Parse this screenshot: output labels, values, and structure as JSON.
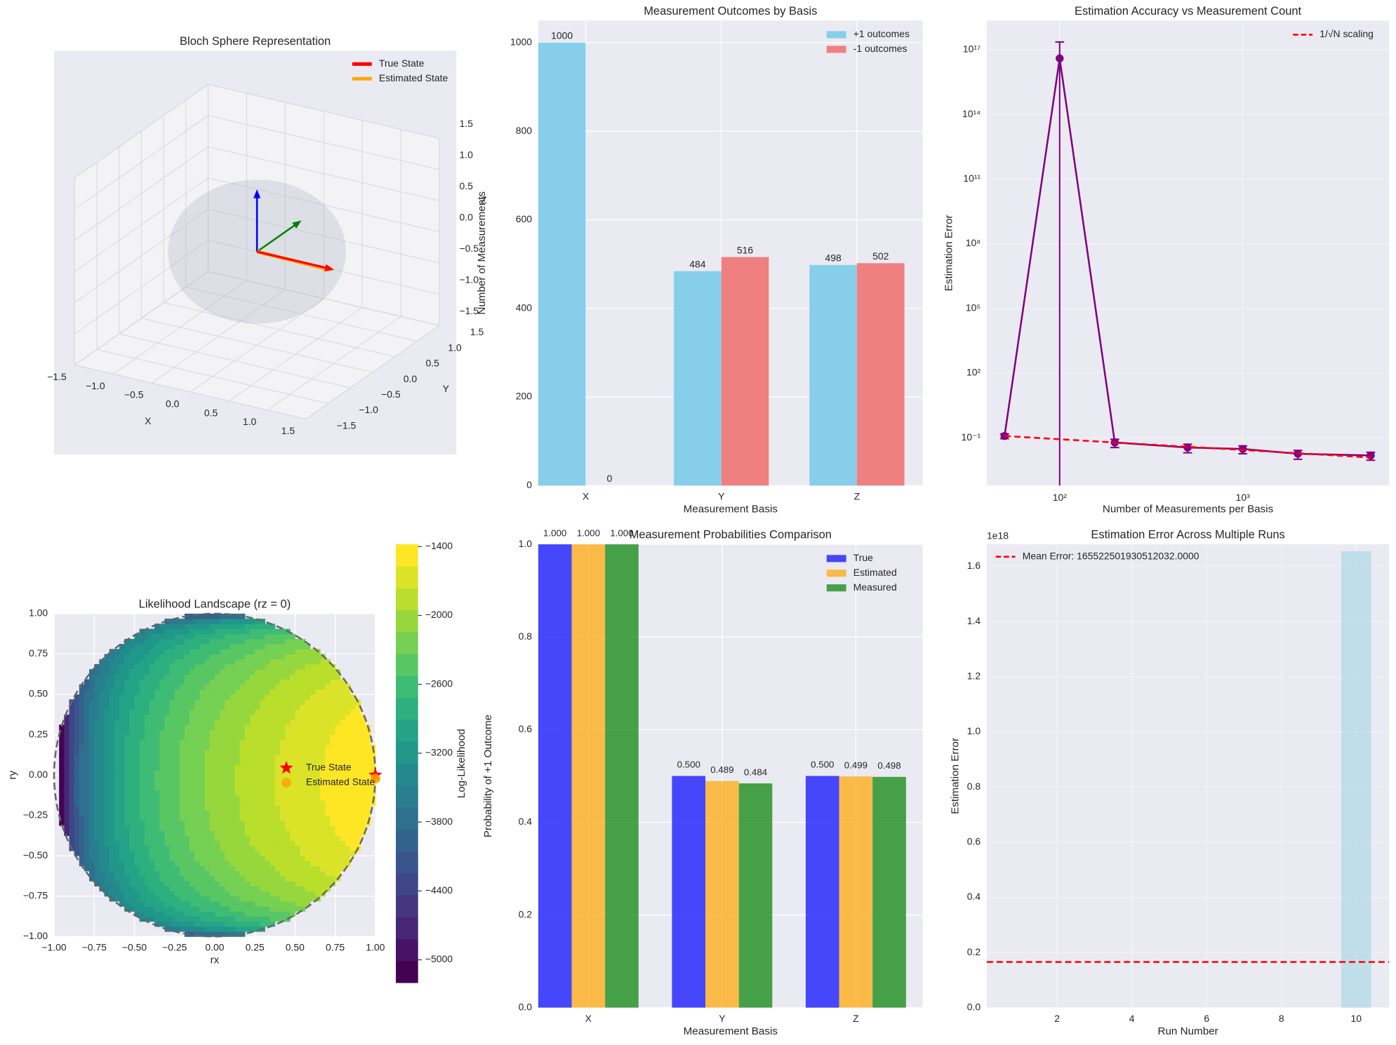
{
  "chart_data": [
    {
      "type": "quiver3d",
      "title": "Bloch Sphere Representation",
      "xlabel": "X",
      "ylabel": "Y",
      "zlabel": "Z",
      "xlim": [
        -1.5,
        1.5
      ],
      "ylim": [
        -1.5,
        1.5
      ],
      "zlim": [
        -1.5,
        1.5
      ],
      "xticks": [
        {
          "value": -1.5,
          "label": "−1.5"
        },
        {
          "value": -1,
          "label": "−1.0"
        },
        {
          "value": -0.5,
          "label": "−0.5"
        },
        {
          "value": 0,
          "label": "0.0"
        },
        {
          "value": 0.5,
          "label": "0.5"
        },
        {
          "value": 1,
          "label": "1.0"
        },
        {
          "value": 1.5,
          "label": "1.5"
        }
      ],
      "yticks": [
        {
          "value": -1.5,
          "label": "−1.5"
        },
        {
          "value": -1,
          "label": "−1.0"
        },
        {
          "value": -0.5,
          "label": "−0.5"
        },
        {
          "value": 0,
          "label": "0.0"
        },
        {
          "value": 0.5,
          "label": "0.5"
        },
        {
          "value": 1,
          "label": "1.0"
        },
        {
          "value": 1.5,
          "label": "1.5"
        }
      ],
      "zticks": [
        {
          "value": -1.5,
          "label": "−1.5"
        },
        {
          "value": -1,
          "label": "−1.0"
        },
        {
          "value": -0.5,
          "label": "−0.5"
        },
        {
          "value": 0,
          "label": "0.0"
        },
        {
          "value": 0.5,
          "label": "0.5"
        },
        {
          "value": 1,
          "label": "1.0"
        },
        {
          "value": 1.5,
          "label": "1.5"
        }
      ],
      "sphere_radius": 1,
      "axis_vectors": [
        {
          "color": "blue",
          "vector": [
            0,
            0,
            1
          ]
        },
        {
          "color": "green",
          "vector": [
            0,
            1,
            0
          ]
        }
      ],
      "series": [
        {
          "name": "True State",
          "color": "red",
          "vector": [
            1,
            0,
            0
          ]
        },
        {
          "name": "Estimated State",
          "color": "orange",
          "vector": [
            1,
            -0.022,
            -0.002
          ]
        }
      ],
      "legend": "upper right"
    },
    {
      "type": "bar",
      "title": "Measurement Outcomes by Basis",
      "xlabel": "Measurement Basis",
      "ylabel": "Number of Measurements",
      "categories": [
        "X",
        "Y",
        "Z"
      ],
      "series": [
        {
          "name": "+1 outcomes",
          "color": "#87ceeb",
          "values": [
            1000,
            484,
            498
          ]
        },
        {
          "name": "-1 outcomes",
          "color": "#f08080",
          "values": [
            0,
            516,
            502
          ]
        }
      ],
      "ylim": [
        0,
        1050
      ],
      "yticks": [
        0,
        200,
        400,
        600,
        800,
        1000
      ],
      "grid": true,
      "legend": "upper right"
    },
    {
      "type": "errorbar",
      "title": "Estimation Accuracy vs Measurement Count",
      "xlabel": "Number of Measurements per Basis",
      "ylabel": "Estimation Error",
      "xscale": "log",
      "yscale": "log",
      "x": [
        50,
        100,
        200,
        500,
        1000,
        2000,
        5000
      ],
      "series": [
        {
          "color": "purple",
          "marker": "circle",
          "values": [
            0.12,
            40000000000000000,
            0.06,
            0.035,
            0.03,
            0.018,
            0.015
          ],
          "errors": [
            0.03,
            190000000000000000,
            0.025,
            0.015,
            0.012,
            0.008,
            0.006
          ]
        },
        {
          "name": "1/√N scaling",
          "color": "red",
          "linestyle": "dashed",
          "values": [
            0.12,
            0.085,
            0.06,
            0.038,
            0.027,
            0.019,
            0.012
          ]
        }
      ],
      "xlim": [
        40,
        6300
      ],
      "ylim": [
        0.0006,
        2.3e+18
      ],
      "xticks": [
        {
          "value": 100,
          "label": "10²"
        },
        {
          "value": 1000,
          "label": "10³"
        }
      ],
      "yticks": [
        {
          "value": 0.1,
          "label": "10⁻¹"
        },
        {
          "value": 100,
          "label": "10²"
        },
        {
          "value": 100000,
          "label": "10⁵"
        },
        {
          "value": 100000000,
          "label": "10⁸"
        },
        {
          "value": 100000000000,
          "label": "10¹¹"
        },
        {
          "value": 100000000000000,
          "label": "10¹⁴"
        },
        {
          "value": 100000000000000000,
          "label": "10¹⁷"
        }
      ],
      "grid": true,
      "legend": "upper right"
    },
    {
      "type": "contour",
      "title": "Likelihood Landscape (rz = 0)",
      "xlabel": "rx",
      "ylabel": "ry",
      "colorbar_label": "Log-Likelihood",
      "colormap": "viridis",
      "rz": 0,
      "levels": [
        -5200,
        -5009,
        -4818,
        -4627,
        -4436,
        -4245,
        -4054,
        -3863,
        -3672,
        -3481,
        -3290,
        -3099,
        -2908,
        -2717,
        -2526,
        -2335,
        -2144,
        -1953,
        -1762,
        -1571,
        -1380
      ],
      "xlim": [
        -1,
        1
      ],
      "ylim": [
        -1,
        1
      ],
      "xticks": [
        {
          "value": -1,
          "label": "−1.00"
        },
        {
          "value": -0.75,
          "label": "−0.75"
        },
        {
          "value": -0.5,
          "label": "−0.50"
        },
        {
          "value": -0.25,
          "label": "−0.25"
        },
        {
          "value": 0,
          "label": "0.00"
        },
        {
          "value": 0.25,
          "label": "0.25"
        },
        {
          "value": 0.5,
          "label": "0.50"
        },
        {
          "value": 0.75,
          "label": "0.75"
        },
        {
          "value": 1,
          "label": "1.00"
        }
      ],
      "yticks": [
        {
          "value": -1,
          "label": "−1.00"
        },
        {
          "value": -0.75,
          "label": "−0.75"
        },
        {
          "value": -0.5,
          "label": "−0.50"
        },
        {
          "value": -0.25,
          "label": "−0.25"
        },
        {
          "value": 0,
          "label": "0.00"
        },
        {
          "value": 0.25,
          "label": "0.25"
        },
        {
          "value": 0.5,
          "label": "0.50"
        },
        {
          "value": 0.75,
          "label": "0.75"
        },
        {
          "value": 1,
          "label": "1.00"
        }
      ],
      "colorbar_ticks": [
        {
          "value": -1400,
          "label": "−1400"
        },
        {
          "value": -2000,
          "label": "−2000"
        },
        {
          "value": -2600,
          "label": "−2600"
        },
        {
          "value": -3200,
          "label": "−3200"
        },
        {
          "value": -3800,
          "label": "−3800"
        },
        {
          "value": -4400,
          "label": "−4400"
        },
        {
          "value": -5000,
          "label": "−5000"
        }
      ],
      "series": [
        {
          "name": "True State",
          "color": "red",
          "marker": "star",
          "x": 1,
          "y": 0
        },
        {
          "name": "Estimated State",
          "color": "orange",
          "marker": "circle",
          "x": 1,
          "y": -0.022
        }
      ],
      "legend": "center right"
    },
    {
      "type": "bar",
      "title": "Measurement Probabilities Comparison",
      "xlabel": "Measurement Basis",
      "ylabel": "Probability of +1 Outcome",
      "categories": [
        "X",
        "Y",
        "Z"
      ],
      "series": [
        {
          "name": "True",
          "color": "blue",
          "values": [
            1,
            0.5,
            0.5
          ],
          "value_labels": [
            "1.000",
            "0.500",
            "0.500"
          ]
        },
        {
          "name": "Estimated",
          "color": "orange",
          "values": [
            1,
            0.489,
            0.499
          ],
          "value_labels": [
            "1.000",
            "0.489",
            "0.499"
          ]
        },
        {
          "name": "Measured",
          "color": "green",
          "values": [
            1,
            0.484,
            0.498
          ],
          "value_labels": [
            "1.000",
            "0.484",
            "0.498"
          ]
        }
      ],
      "alpha": 0.7,
      "ylim": [
        0,
        1
      ],
      "yticks": [
        {
          "value": 0,
          "label": "0.0"
        },
        {
          "value": 0.2,
          "label": "0.2"
        },
        {
          "value": 0.4,
          "label": "0.4"
        },
        {
          "value": 0.6,
          "label": "0.6"
        },
        {
          "value": 0.8,
          "label": "0.8"
        },
        {
          "value": 1,
          "label": "1.0"
        }
      ],
      "grid": true,
      "legend": "upper right"
    },
    {
      "type": "bar",
      "title": "Estimation Error Across Multiple Runs",
      "xlabel": "Run Number",
      "ylabel": "Estimation Error",
      "x": [
        1,
        2,
        3,
        4,
        5,
        6,
        7,
        8,
        9,
        10
      ],
      "values": [
        0.05,
        0.04,
        0.06,
        0.05,
        0.05,
        0.04,
        0.06,
        0.05,
        0.05,
        1655225019305120000
      ],
      "color": "lightblue",
      "alpha": 0.7,
      "offset_text": "1e18",
      "xlim": [
        0.12,
        10.88
      ],
      "ylim": [
        0,
        1680000000000000000
      ],
      "xticks": [
        2,
        4,
        6,
        8,
        10
      ],
      "yticks": [
        {
          "value": 0,
          "label": "0.0"
        },
        {
          "value": 200000000000000000,
          "label": "0.2"
        },
        {
          "value": 400000000000000000,
          "label": "0.4"
        },
        {
          "value": 600000000000000000,
          "label": "0.6"
        },
        {
          "value": 800000000000000000,
          "label": "0.8"
        },
        {
          "value": 1000000000000000000,
          "label": "1.0"
        },
        {
          "value": 1200000000000000000,
          "label": "1.2"
        },
        {
          "value": 1400000000000000000,
          "label": "1.4"
        },
        {
          "value": 1600000000000000000,
          "label": "1.6"
        }
      ],
      "mean_line": {
        "label": "Mean Error: 165522501930512032.0000",
        "value": 165522501930512032,
        "color": "red"
      },
      "grid": true,
      "legend": "upper left"
    }
  ]
}
